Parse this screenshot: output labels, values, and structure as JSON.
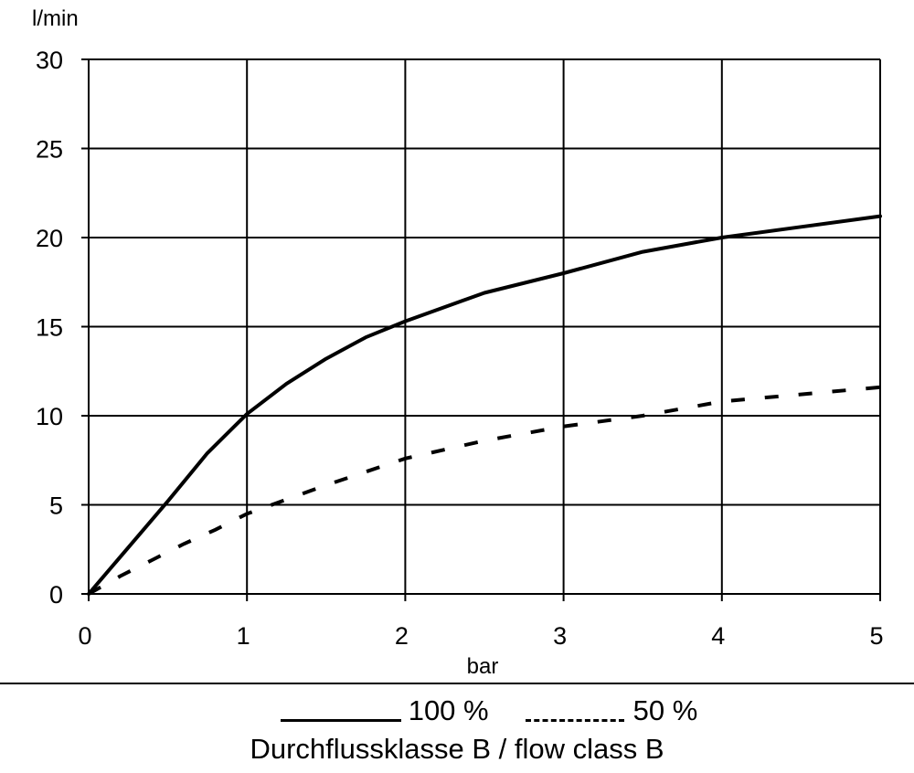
{
  "chart_data": {
    "type": "line",
    "title": "",
    "xlabel": "bar",
    "ylabel": "l/min",
    "xlim": [
      0,
      5
    ],
    "ylim": [
      0,
      30
    ],
    "x_ticks": [
      0,
      1,
      2,
      3,
      4,
      5
    ],
    "y_ticks": [
      0,
      5,
      10,
      15,
      20,
      25,
      30
    ],
    "grid": true,
    "legend_placement": "bottom",
    "series": [
      {
        "name": "100 %",
        "style": "solid",
        "points": [
          [
            0,
            0
          ],
          [
            0.25,
            2.6
          ],
          [
            0.5,
            5.2
          ],
          [
            0.75,
            7.9
          ],
          [
            1,
            10.1
          ],
          [
            1.25,
            11.8
          ],
          [
            1.5,
            13.2
          ],
          [
            1.75,
            14.4
          ],
          [
            2,
            15.3
          ],
          [
            2.5,
            16.9
          ],
          [
            3,
            18.0
          ],
          [
            3.5,
            19.2
          ],
          [
            4,
            20.0
          ],
          [
            4.5,
            20.6
          ],
          [
            5,
            21.2
          ]
        ]
      },
      {
        "name": "50 %",
        "style": "dashed",
        "points": [
          [
            0,
            0
          ],
          [
            0.2,
            1.0
          ],
          [
            0.4,
            1.9
          ],
          [
            0.6,
            2.8
          ],
          [
            0.8,
            3.6
          ],
          [
            1,
            4.5
          ],
          [
            1.25,
            5.3
          ],
          [
            1.5,
            6.1
          ],
          [
            2,
            7.6
          ],
          [
            2.5,
            8.6
          ],
          [
            3,
            9.4
          ],
          [
            3.5,
            10.0
          ],
          [
            4,
            10.8
          ],
          [
            4.5,
            11.2
          ],
          [
            5,
            11.6
          ]
        ]
      }
    ]
  },
  "legend": {
    "series1_label": "100 %",
    "series2_label": "50 %",
    "caption": "Durchflussklasse B / flow class B"
  }
}
